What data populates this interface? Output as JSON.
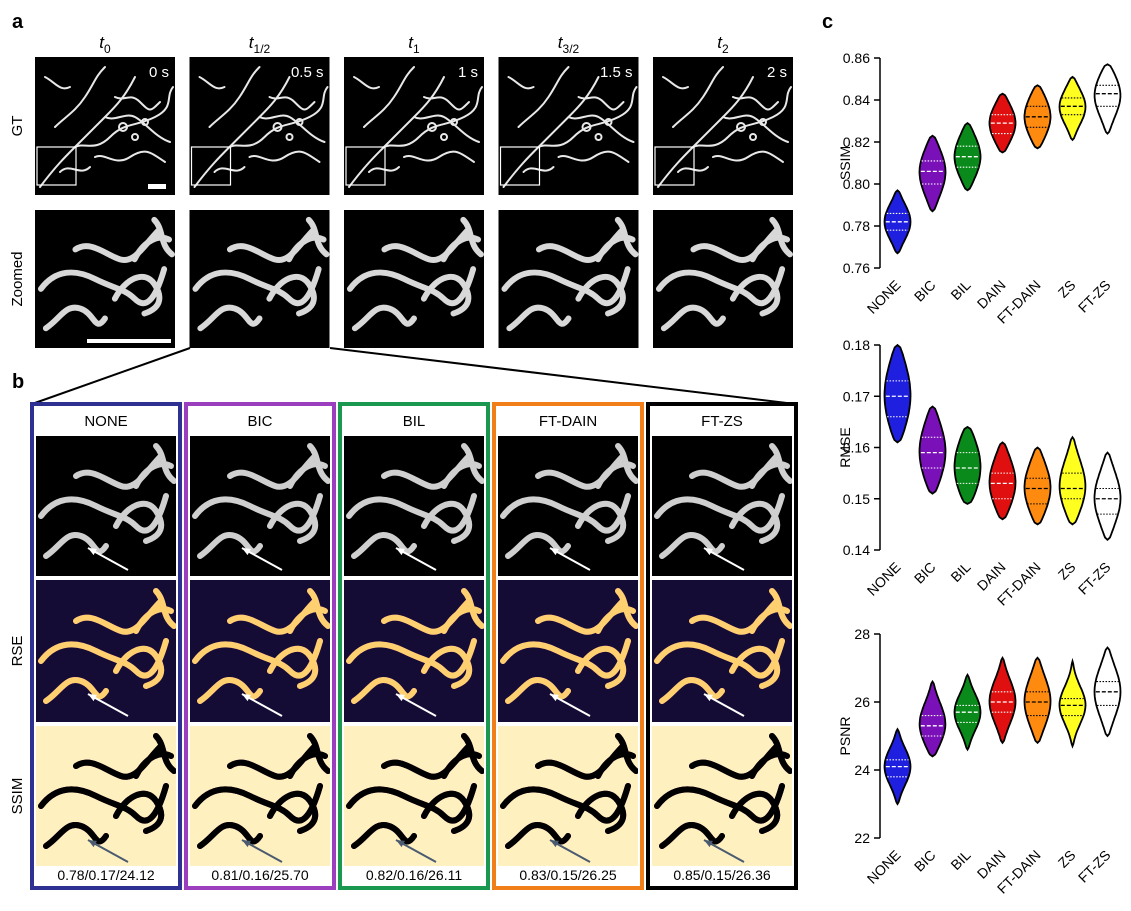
{
  "panel_labels": [
    "a",
    "b",
    "c"
  ],
  "panel_a": {
    "columns": [
      {
        "symbol": "t",
        "subscript": "0",
        "time": "0 s"
      },
      {
        "symbol": "t",
        "subscript": "1/2",
        "time": "0.5 s"
      },
      {
        "symbol": "t",
        "subscript": "1",
        "time": "1 s"
      },
      {
        "symbol": "t",
        "subscript": "3/2",
        "time": "1.5 s"
      },
      {
        "symbol": "t",
        "subscript": "2",
        "time": "2 s"
      }
    ],
    "row_labels": [
      "GT",
      "Zoomed"
    ]
  },
  "panel_b": {
    "columns": [
      {
        "title": "NONE",
        "color": "#2e3192",
        "metrics": "0.78/0.17/24.12"
      },
      {
        "title": "BIC",
        "color": "#9b3fbf",
        "metrics": "0.81/0.16/25.70"
      },
      {
        "title": "BIL",
        "color": "#1a9850",
        "metrics": "0.82/0.16/26.11"
      },
      {
        "title": "FT-DAIN",
        "color": "#f07f1a",
        "metrics": "0.83/0.15/26.25"
      },
      {
        "title": "FT-ZS",
        "color": "#000000",
        "metrics": "0.85/0.15/26.36"
      }
    ],
    "row_labels": [
      "RSE",
      "SSIM"
    ]
  },
  "chart_data": [
    {
      "type": "violin",
      "ylabel": "SSIM",
      "categories": [
        "NONE",
        "BIC",
        "BIL",
        "DAIN",
        "FT-DAIN",
        "ZS",
        "FT-ZS"
      ],
      "colors": [
        "#1f1fe0",
        "#7a10b8",
        "#0a8a1a",
        "#e01010",
        "#ff8a10",
        "#ffff20",
        "#ffffff"
      ],
      "stats": {
        "min": [
          0.767,
          0.787,
          0.797,
          0.815,
          0.817,
          0.821,
          0.824
        ],
        "q1": [
          0.778,
          0.8,
          0.808,
          0.824,
          0.827,
          0.833,
          0.837
        ],
        "median": [
          0.782,
          0.806,
          0.813,
          0.829,
          0.832,
          0.837,
          0.843
        ],
        "q3": [
          0.786,
          0.811,
          0.818,
          0.833,
          0.837,
          0.841,
          0.847
        ],
        "max": [
          0.797,
          0.823,
          0.829,
          0.843,
          0.847,
          0.851,
          0.857
        ]
      },
      "ylim": [
        0.76,
        0.86
      ],
      "yticks": [
        0.76,
        0.78,
        {
          "value": 0.8,
          "label": "0.80"
        },
        0.82,
        0.84,
        0.86
      ]
    },
    {
      "type": "violin",
      "ylabel": "RMSE",
      "categories": [
        "NONE",
        "BIC",
        "BIL",
        "DAIN",
        "FT-DAIN",
        "ZS",
        "FT-ZS"
      ],
      "colors": [
        "#1f1fe0",
        "#7a10b8",
        "#0a8a1a",
        "#e01010",
        "#ff8a10",
        "#ffff20",
        "#ffffff"
      ],
      "stats": {
        "min": [
          0.161,
          0.151,
          0.149,
          0.146,
          0.145,
          0.145,
          0.142
        ],
        "q1": [
          0.166,
          0.156,
          0.153,
          0.15,
          0.149,
          0.15,
          0.147
        ],
        "median": [
          0.17,
          0.159,
          0.156,
          0.153,
          0.152,
          0.152,
          0.15
        ],
        "q3": [
          0.173,
          0.162,
          0.159,
          0.155,
          0.154,
          0.155,
          0.152
        ],
        "max": [
          0.18,
          0.168,
          0.164,
          0.161,
          0.16,
          0.162,
          0.159
        ]
      },
      "ylim": [
        0.14,
        0.18
      ],
      "yticks": [
        0.14,
        0.15,
        0.16,
        0.17,
        0.18
      ]
    },
    {
      "type": "violin",
      "ylabel": "PSNR",
      "categories": [
        "NONE",
        "BIC",
        "BIL",
        "DAIN",
        "FT-DAIN",
        "ZS",
        "FT-ZS"
      ],
      "colors": [
        "#1f1fe0",
        "#7a10b8",
        "#0a8a1a",
        "#e01010",
        "#ff8a10",
        "#ffff20",
        "#ffffff"
      ],
      "stats": {
        "min": [
          23.0,
          24.4,
          24.6,
          24.8,
          24.8,
          24.7,
          25.0
        ],
        "q1": [
          23.8,
          25.0,
          25.4,
          25.7,
          25.6,
          25.6,
          25.9
        ],
        "median": [
          24.1,
          25.3,
          25.7,
          26.0,
          26.0,
          25.9,
          26.3
        ],
        "q3": [
          24.3,
          25.6,
          25.9,
          26.3,
          26.3,
          26.1,
          26.6
        ],
        "max": [
          25.2,
          26.6,
          26.8,
          27.3,
          27.3,
          27.2,
          27.6
        ]
      },
      "ylim": [
        22,
        28
      ],
      "yticks": [
        22,
        24,
        26,
        28
      ]
    }
  ]
}
